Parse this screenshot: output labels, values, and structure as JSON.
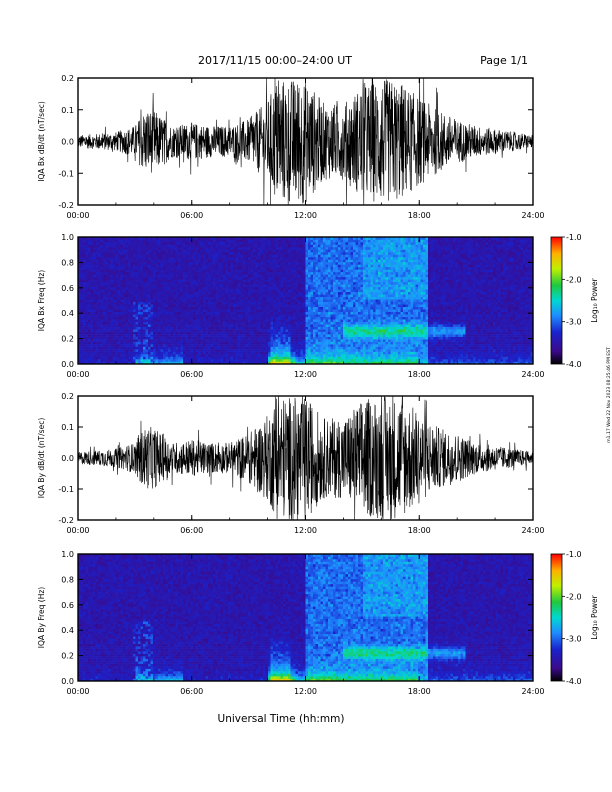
{
  "header": {
    "title": "2017/11/15  00:00–24:00 UT",
    "page": "Page 1/1"
  },
  "stamp": "m1.17 Wed 22 Nov 2023 08:25:46 PM EST",
  "xlabel": "Universal Time (hh:mm)",
  "chart_data": [
    {
      "type": "line",
      "ylabel": "IQA Bx dB/dt (nT/sec)",
      "xlim": [
        0,
        24
      ],
      "ylim": [
        -0.2,
        0.2
      ],
      "xticks": [
        "00:00",
        "06:00",
        "12:00",
        "18:00",
        "24:00"
      ],
      "yticks": [
        "0.2",
        "0.1",
        "0.0",
        "-0.1",
        "-0.2"
      ],
      "series_color": "#000000",
      "envelope": {
        "x": [
          0,
          1,
          2,
          3,
          3.5,
          4,
          5,
          6,
          7,
          8,
          9,
          10,
          10.5,
          11,
          12,
          13,
          14,
          15,
          16,
          17,
          18,
          19,
          20,
          21,
          22,
          23,
          24
        ],
        "amplitude": [
          0.02,
          0.025,
          0.03,
          0.05,
          0.1,
          0.1,
          0.05,
          0.06,
          0.05,
          0.05,
          0.07,
          0.13,
          0.2,
          0.2,
          0.2,
          0.12,
          0.12,
          0.18,
          0.2,
          0.19,
          0.14,
          0.1,
          0.07,
          0.05,
          0.04,
          0.03,
          0.02
        ]
      }
    },
    {
      "type": "heatmap",
      "ylabel": "IQA Bx Freq (Hz)",
      "xlim": [
        0,
        24
      ],
      "ylim": [
        0,
        1.0
      ],
      "xticks": [
        "00:00",
        "06:00",
        "12:00",
        "18:00",
        "24:00"
      ],
      "yticks": [
        "1.0",
        "0.8",
        "0.6",
        "0.4",
        "0.2",
        "0.0"
      ],
      "colorbar": {
        "label": "Log₁₀ Power",
        "ticks": [
          "-1.0",
          "-2.0",
          "-3.0",
          "-4.0"
        ],
        "range": [
          -4.0,
          -1.0
        ],
        "colors": [
          "#000000",
          "#3b0a8a",
          "#1a22cc",
          "#1f8cff",
          "#00d8d0",
          "#20c840",
          "#bff000",
          "#ffb000",
          "#ff0000"
        ]
      }
    },
    {
      "type": "line",
      "ylabel": "IQA By dB/dt (nT/sec)",
      "xlim": [
        0,
        24
      ],
      "ylim": [
        -0.2,
        0.2
      ],
      "xticks": [
        "00:00",
        "06:00",
        "12:00",
        "18:00",
        "24:00"
      ],
      "yticks": [
        "0.2",
        "0.1",
        "0.0",
        "-0.1",
        "-0.2"
      ],
      "series_color": "#000000",
      "envelope": {
        "x": [
          0,
          1,
          2,
          3,
          3.5,
          4,
          5,
          6,
          7,
          8,
          9,
          10,
          10.5,
          11,
          12,
          13,
          14,
          15,
          16,
          17,
          18,
          19,
          20,
          21,
          22,
          23,
          24
        ],
        "amplitude": [
          0.02,
          0.025,
          0.03,
          0.05,
          0.1,
          0.1,
          0.05,
          0.06,
          0.05,
          0.05,
          0.08,
          0.14,
          0.2,
          0.2,
          0.2,
          0.13,
          0.13,
          0.19,
          0.2,
          0.2,
          0.15,
          0.1,
          0.08,
          0.05,
          0.04,
          0.03,
          0.02
        ]
      }
    },
    {
      "type": "heatmap",
      "ylabel": "IQA By Freq (Hz)",
      "xlim": [
        0,
        24
      ],
      "ylim": [
        0,
        1.0
      ],
      "xticks": [
        "00:00",
        "06:00",
        "12:00",
        "18:00",
        "24:00"
      ],
      "yticks": [
        "1.0",
        "0.8",
        "0.6",
        "0.4",
        "0.2",
        "0.0"
      ],
      "colorbar": {
        "label": "Log₁₀ Power",
        "ticks": [
          "-1.0",
          "-2.0",
          "-3.0",
          "-4.0"
        ],
        "range": [
          -4.0,
          -1.0
        ],
        "colors": [
          "#000000",
          "#3b0a8a",
          "#1a22cc",
          "#1f8cff",
          "#00d8d0",
          "#20c840",
          "#bff000",
          "#ffb000",
          "#ff0000"
        ]
      }
    }
  ]
}
